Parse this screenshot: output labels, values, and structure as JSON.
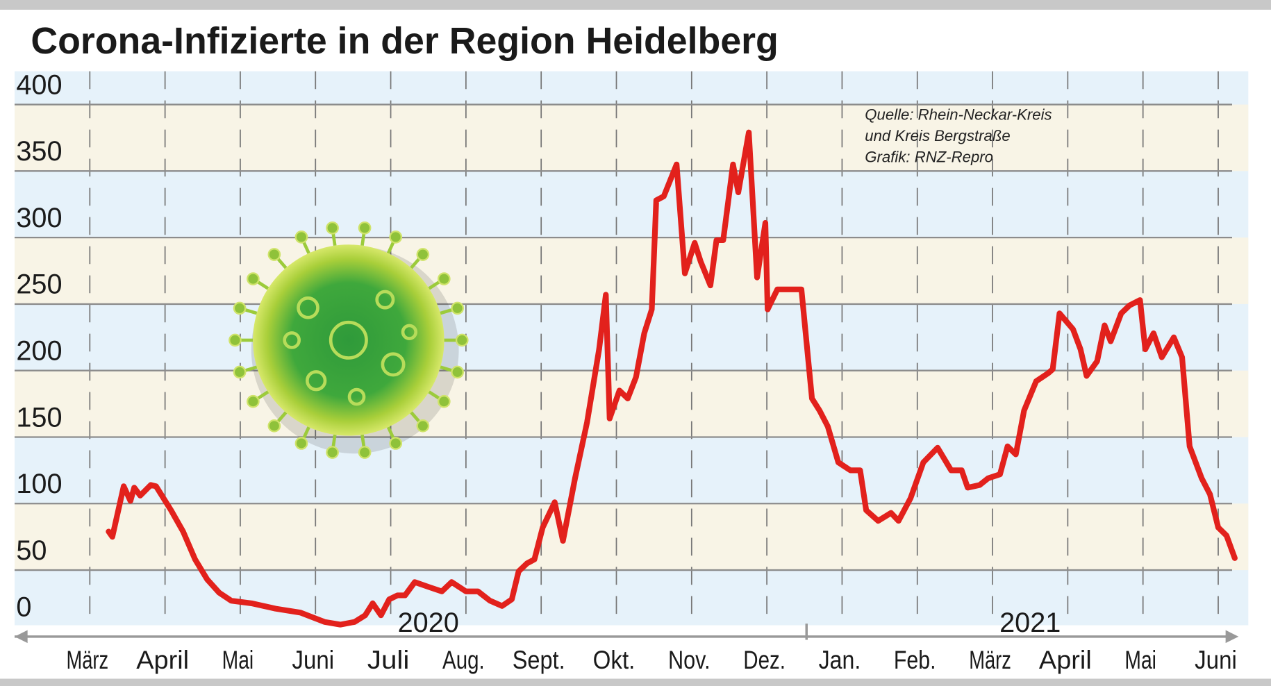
{
  "chart_data": {
    "type": "line",
    "title": "Corona-Infizierte in der Region Heidelberg",
    "annotations": [
      "Quelle: Rhein-Neckar-Kreis",
      "und Kreis Bergstraße",
      "Grafik: RNZ-Repro"
    ],
    "years": [
      {
        "label": "2020",
        "x": 4.5
      },
      {
        "label": "2021",
        "x": 12.5
      }
    ],
    "xlim": [
      -1,
      15.4
    ],
    "xticks": [
      {
        "value": 0,
        "label": "März"
      },
      {
        "value": 1,
        "label": "April"
      },
      {
        "value": 2,
        "label": "Mai"
      },
      {
        "value": 3,
        "label": "Juni"
      },
      {
        "value": 4,
        "label": "Juli"
      },
      {
        "value": 5,
        "label": "Aug."
      },
      {
        "value": 6,
        "label": "Sept."
      },
      {
        "value": 7,
        "label": "Okt."
      },
      {
        "value": 8,
        "label": "Nov."
      },
      {
        "value": 9,
        "label": "Dez."
      },
      {
        "value": 10,
        "label": "Jan."
      },
      {
        "value": 11,
        "label": "Feb."
      },
      {
        "value": 12,
        "label": "März"
      },
      {
        "value": 13,
        "label": "April"
      },
      {
        "value": 14,
        "label": "Mai"
      },
      {
        "value": 15,
        "label": "Juni"
      }
    ],
    "ylim": [
      0,
      425
    ],
    "yticks": [
      0,
      50,
      100,
      150,
      200,
      250,
      300,
      350,
      400
    ],
    "grid": true,
    "series": [
      {
        "color": "#e2211c",
        "x": [
          0.25,
          0.3,
          0.45,
          0.54,
          0.59,
          0.67,
          0.81,
          0.88,
          1.08,
          1.24,
          1.4,
          1.56,
          1.72,
          1.88,
          2.15,
          2.47,
          2.8,
          3.12,
          3.33,
          3.52,
          3.66,
          3.76,
          3.87,
          3.98,
          4.09,
          4.19,
          4.32,
          4.52,
          4.68,
          4.81,
          5.0,
          5.16,
          5.32,
          5.48,
          5.61,
          5.7,
          5.81,
          5.91,
          6.02,
          6.18,
          6.29,
          6.45,
          6.61,
          6.77,
          6.86,
          6.91,
          7.04,
          7.15,
          7.26,
          7.37,
          7.47,
          7.53,
          7.63,
          7.8,
          7.91,
          8.04,
          8.12,
          8.25,
          8.33,
          8.42,
          8.55,
          8.62,
          8.76,
          8.87,
          8.98,
          9.01,
          9.14,
          9.3,
          9.46,
          9.6,
          9.7,
          9.81,
          9.95,
          10.11,
          10.24,
          10.32,
          10.48,
          10.65,
          10.75,
          10.91,
          11.08,
          11.27,
          11.45,
          11.59,
          11.67,
          11.83,
          11.94,
          12.1,
          12.2,
          12.31,
          12.42,
          12.58,
          12.74,
          12.8,
          12.89,
          13.07,
          13.17,
          13.25,
          13.39,
          13.49,
          13.57,
          13.71,
          13.82,
          13.96,
          14.03,
          14.14,
          14.25,
          14.41,
          14.52,
          14.62,
          14.78,
          14.89,
          15.0,
          15.11,
          15.22
        ],
        "values": [
          79,
          75,
          113,
          102,
          112,
          106,
          114,
          113,
          95,
          79,
          58,
          43,
          33,
          27,
          25,
          21,
          18,
          11,
          9,
          11,
          16,
          25,
          16,
          28,
          31,
          31,
          41,
          37,
          34,
          41,
          34,
          34,
          27,
          23,
          28,
          49,
          55,
          58,
          82,
          101,
          72,
          119,
          161,
          216,
          257,
          164,
          185,
          179,
          195,
          228,
          246,
          328,
          331,
          355,
          273,
          296,
          282,
          264,
          298,
          298,
          355,
          334,
          379,
          270,
          311,
          246,
          261,
          261,
          261,
          179,
          170,
          158,
          131,
          125,
          125,
          95,
          87,
          93,
          87,
          104,
          131,
          142,
          125,
          125,
          112,
          114,
          119,
          122,
          143,
          137,
          170,
          192,
          198,
          201,
          243,
          231,
          216,
          196,
          207,
          234,
          222,
          243,
          249,
          253,
          216,
          228,
          210,
          225,
          210,
          143,
          119,
          107,
          82,
          76,
          59
        ]
      }
    ]
  }
}
